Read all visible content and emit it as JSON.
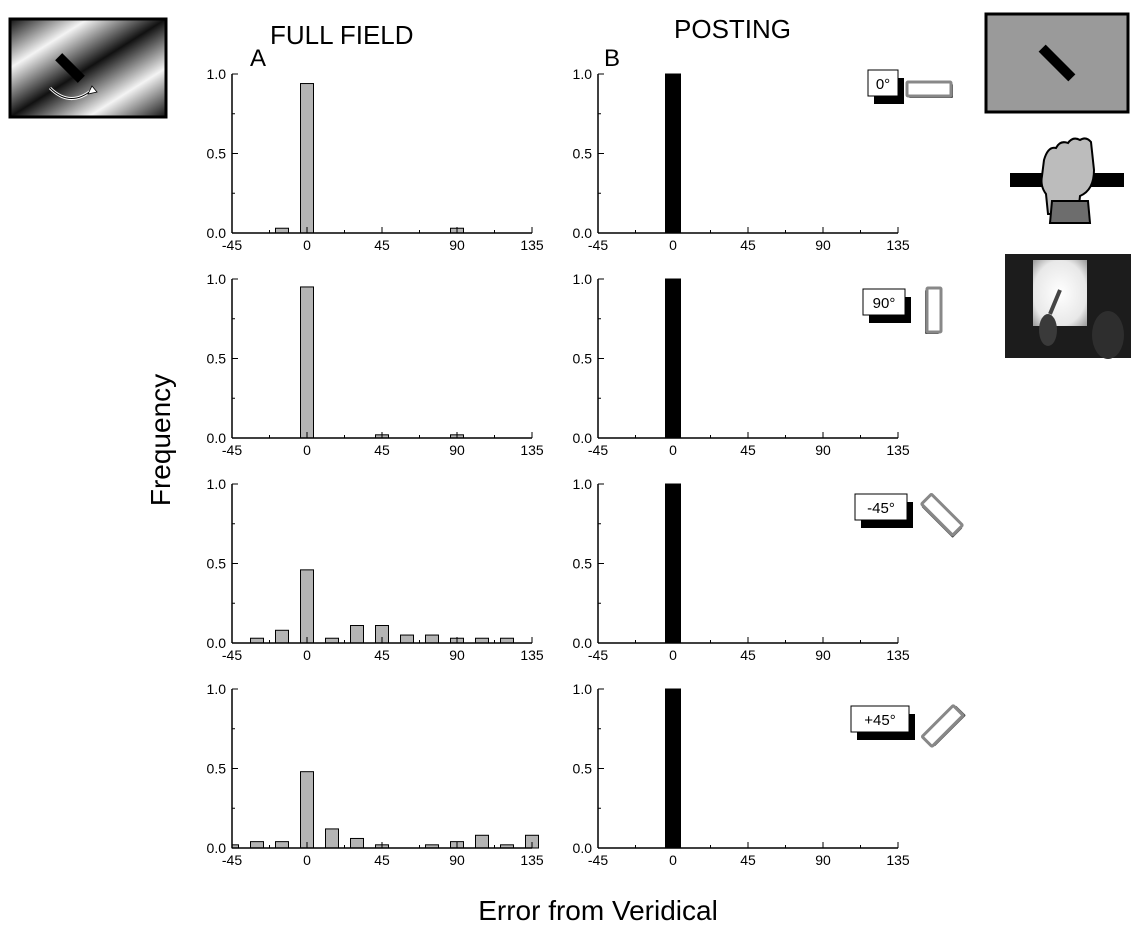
{
  "headings": {
    "left": "FULL FIELD",
    "right": "POSTING",
    "letter_left": "A",
    "letter_right": "B"
  },
  "axis_titles": {
    "y": "Frequency",
    "x": "Error from Veridical"
  },
  "conditions": [
    {
      "label": "0°",
      "rotation": 0
    },
    {
      "label": "90°",
      "rotation": 90
    },
    {
      "label": "-45°",
      "rotation": 45
    },
    {
      "label": "+45°",
      "rotation": -45
    }
  ],
  "colors": {
    "full_field_bar": "#b4b4b4",
    "posting_bar": "#000000",
    "axis": "#000000",
    "screen_gray": "#9a9a9a",
    "photo_dark": "#1c1c1c"
  },
  "icons": {
    "top_left": "rotating-grating-with-bar-icon",
    "top_right": "oriented-bar-on-gray-screen-icon",
    "hand": "hand-grasping-bar-icon",
    "photo": "posting-task-photo-icon"
  },
  "chart_data": [
    {
      "type": "bar",
      "column": "FULL FIELD",
      "condition": "0°",
      "x": [
        -45,
        -30,
        -15,
        0,
        15,
        30,
        45,
        60,
        75,
        90,
        105,
        120,
        135
      ],
      "y": [
        0,
        0,
        0.03,
        0.94,
        0,
        0,
        0,
        0,
        0,
        0.03,
        0,
        0,
        0
      ],
      "xlim": [
        -45,
        135
      ],
      "ylim": [
        0,
        1
      ],
      "xticks": [
        -45,
        0,
        45,
        90,
        135
      ],
      "yticks": [
        0,
        0.5,
        1
      ],
      "xtick_labels": [
        "-45",
        "0",
        "45",
        "90",
        "135"
      ],
      "ytick_labels": [
        "0.0",
        "0.5",
        "1.0"
      ]
    },
    {
      "type": "bar",
      "column": "POSTING",
      "condition": "0°",
      "x": [
        0
      ],
      "y": [
        1.0
      ],
      "xlim": [
        -45,
        135
      ],
      "ylim": [
        0,
        1
      ],
      "xticks": [
        -45,
        0,
        45,
        90,
        135
      ],
      "yticks": [
        0,
        0.5,
        1
      ],
      "xtick_labels": [
        "-45",
        "0",
        "45",
        "90",
        "135"
      ],
      "ytick_labels": [
        "0.0",
        "0.5",
        "1.0"
      ]
    },
    {
      "type": "bar",
      "column": "FULL FIELD",
      "condition": "90°",
      "x": [
        -45,
        -30,
        -15,
        0,
        15,
        30,
        45,
        60,
        75,
        90,
        105,
        120,
        135
      ],
      "y": [
        0,
        0,
        0,
        0.95,
        0,
        0,
        0.02,
        0,
        0,
        0.02,
        0,
        0,
        0
      ],
      "xlim": [
        -45,
        135
      ],
      "ylim": [
        0,
        1
      ],
      "xticks": [
        -45,
        0,
        45,
        90,
        135
      ],
      "yticks": [
        0,
        0.5,
        1
      ],
      "xtick_labels": [
        "-45",
        "0",
        "45",
        "90",
        "135"
      ],
      "ytick_labels": [
        "0.0",
        "0.5",
        "1.0"
      ]
    },
    {
      "type": "bar",
      "column": "POSTING",
      "condition": "90°",
      "x": [
        0
      ],
      "y": [
        1.0
      ],
      "xlim": [
        -45,
        135
      ],
      "ylim": [
        0,
        1
      ],
      "xticks": [
        -45,
        0,
        45,
        90,
        135
      ],
      "yticks": [
        0,
        0.5,
        1
      ],
      "xtick_labels": [
        "-45",
        "0",
        "45",
        "90",
        "135"
      ],
      "ytick_labels": [
        "0.0",
        "0.5",
        "1.0"
      ]
    },
    {
      "type": "bar",
      "column": "FULL FIELD",
      "condition": "-45°",
      "x": [
        -45,
        -30,
        -15,
        0,
        15,
        30,
        45,
        60,
        75,
        90,
        105,
        120,
        135
      ],
      "y": [
        0,
        0.03,
        0.08,
        0.46,
        0.03,
        0.11,
        0.11,
        0.05,
        0.05,
        0.03,
        0.03,
        0.03,
        0
      ],
      "xlim": [
        -45,
        135
      ],
      "ylim": [
        0,
        1
      ],
      "xticks": [
        -45,
        0,
        45,
        90,
        135
      ],
      "yticks": [
        0,
        0.5,
        1
      ],
      "xtick_labels": [
        "-45",
        "0",
        "45",
        "90",
        "135"
      ],
      "ytick_labels": [
        "0.0",
        "0.5",
        "1.0"
      ]
    },
    {
      "type": "bar",
      "column": "POSTING",
      "condition": "-45°",
      "x": [
        0
      ],
      "y": [
        1.0
      ],
      "xlim": [
        -45,
        135
      ],
      "ylim": [
        0,
        1
      ],
      "xticks": [
        -45,
        0,
        45,
        90,
        135
      ],
      "yticks": [
        0,
        0.5,
        1
      ],
      "xtick_labels": [
        "-45",
        "0",
        "45",
        "90",
        "135"
      ],
      "ytick_labels": [
        "0.0",
        "0.5",
        "1.0"
      ]
    },
    {
      "type": "bar",
      "column": "FULL FIELD",
      "condition": "+45°",
      "x": [
        -45,
        -30,
        -15,
        0,
        15,
        30,
        45,
        60,
        75,
        90,
        105,
        120,
        135
      ],
      "y": [
        0.02,
        0.04,
        0.04,
        0.48,
        0.12,
        0.06,
        0.02,
        0,
        0.02,
        0.04,
        0.08,
        0.02,
        0.08
      ],
      "xlim": [
        -45,
        135
      ],
      "ylim": [
        0,
        1
      ],
      "xticks": [
        -45,
        0,
        45,
        90,
        135
      ],
      "yticks": [
        0,
        0.5,
        1
      ],
      "xtick_labels": [
        "-45",
        "0",
        "45",
        "90",
        "135"
      ],
      "ytick_labels": [
        "0.0",
        "0.5",
        "1.0"
      ]
    },
    {
      "type": "bar",
      "column": "POSTING",
      "condition": "+45°",
      "x": [
        0
      ],
      "y": [
        1.0
      ],
      "xlim": [
        -45,
        135
      ],
      "ylim": [
        0,
        1
      ],
      "xticks": [
        -45,
        0,
        45,
        90,
        135
      ],
      "yticks": [
        0,
        0.5,
        1
      ],
      "xtick_labels": [
        "-45",
        "0",
        "45",
        "90",
        "135"
      ],
      "ytick_labels": [
        "0.0",
        "0.5",
        "1.0"
      ]
    }
  ]
}
